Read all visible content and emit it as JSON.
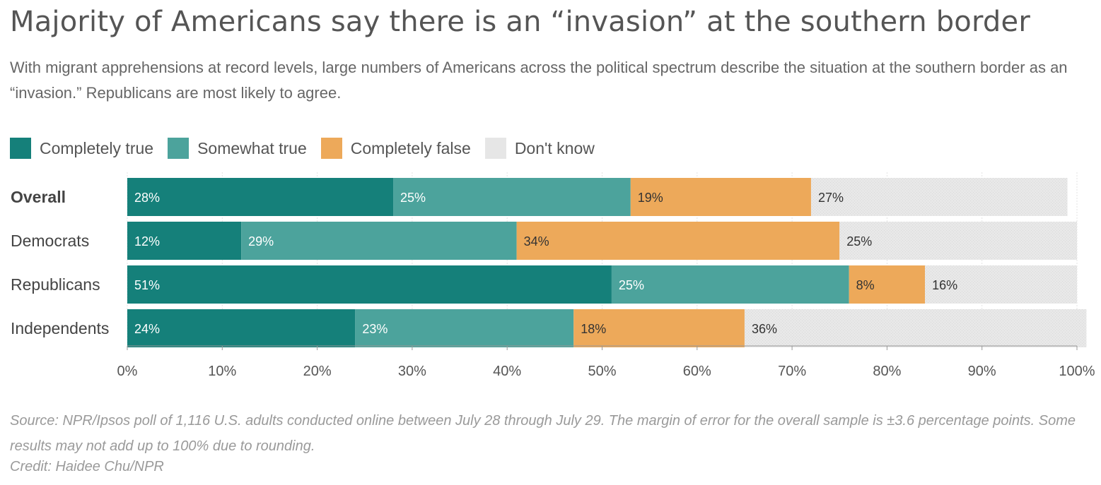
{
  "title": "Majority of Americans say there is an “invasion” at the southern border",
  "subtitle": "With migrant apprehensions at record levels, large numbers of Americans across the political spectrum describe the situation at the southern border as an “invasion.” Republicans are most likely to agree.",
  "legend": [
    {
      "label": "Completely true",
      "color": "#15807a"
    },
    {
      "label": "Somewhat true",
      "color": "#4ca39c"
    },
    {
      "label": "Completely false",
      "color": "#eda95a"
    },
    {
      "label": "Don't know",
      "color": "#e6e6e6"
    }
  ],
  "chart_data": {
    "type": "bar",
    "orientation": "horizontal",
    "stacked": true,
    "categories": [
      "Overall",
      "Democrats",
      "Republicans",
      "Independents"
    ],
    "series": [
      {
        "name": "Completely true",
        "color": "#15807a",
        "values": [
          28,
          12,
          51,
          24
        ],
        "labels": [
          "28%",
          "12%",
          "51%",
          "24%"
        ]
      },
      {
        "name": "Somewhat true",
        "color": "#4ca39c",
        "values": [
          25,
          29,
          25,
          23
        ],
        "labels": [
          "25%",
          "29%",
          "25%",
          "23%"
        ]
      },
      {
        "name": "Completely false",
        "color": "#eda95a",
        "values": [
          19,
          34,
          8,
          18
        ],
        "labels": [
          "19%",
          "34%",
          "8%",
          "18%"
        ]
      },
      {
        "name": "Don't know",
        "color": "#e6e6e6",
        "values": [
          27,
          25,
          16,
          36
        ],
        "labels": [
          "27%",
          "25%",
          "16%",
          "36%"
        ]
      }
    ],
    "xlim": [
      0,
      100
    ],
    "xticks": [
      "0%",
      "10%",
      "20%",
      "30%",
      "40%",
      "50%",
      "60%",
      "70%",
      "80%",
      "90%",
      "100%"
    ],
    "bold_category": "Overall"
  },
  "footer": {
    "source": "Source: NPR/Ipsos poll of 1,116 U.S. adults conducted online between July 28 through July 29. The margin of error for the overall sample is ±3.6 percentage points. Some results may not add up to 100% due to rounding.",
    "credit": "Credit: Haidee Chu/NPR"
  }
}
